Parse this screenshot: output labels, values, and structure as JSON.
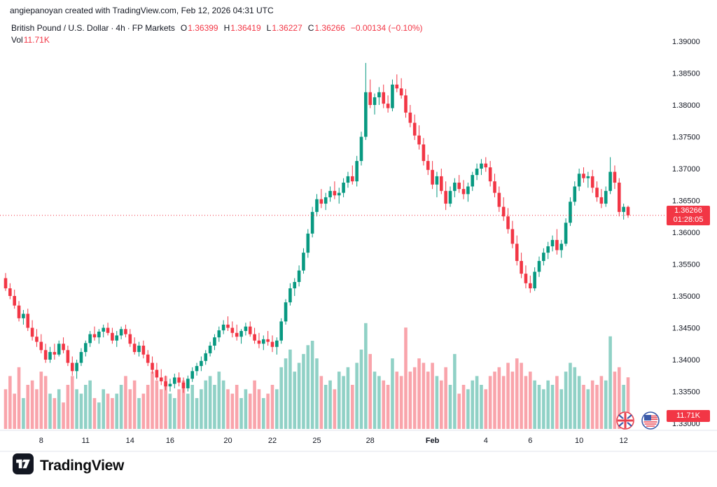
{
  "top_bar": {
    "text": "angiepanoyan created with TradingView.com, Feb 12, 2026 04:31 UTC"
  },
  "legend": {
    "symbol": "British Pound / U.S. Dollar",
    "dot": "·",
    "interval": "4h",
    "exchange": "FP Markets",
    "ohlc": {
      "o_label": "O",
      "o": "1.36399",
      "h_label": "H",
      "h": "1.36419",
      "l_label": "L",
      "l": "1.36227",
      "c_label": "C",
      "c": "1.36266",
      "change": "−0.00134 (−0.10%)"
    },
    "vol_label": "Vol",
    "vol_value": "11.71K"
  },
  "price_label": {
    "price": "1.36266",
    "countdown": "01:28:05"
  },
  "volume_label": "11.71K",
  "footer": {
    "brand": "TradingView"
  },
  "icons": {
    "pair": [
      "gbp-flag-icon",
      "usd-flag-icon"
    ],
    "brand": "tradingview-logo-icon"
  },
  "colors": {
    "up": "#089981",
    "down": "#f23645",
    "vol_up": "rgba(8,153,129,0.45)",
    "vol_down": "rgba(242,54,69,0.45)",
    "axis_text": "#131722",
    "label_bg": "#f23645",
    "separator": "#e0e3eb"
  },
  "chart_data": {
    "type": "candlestick",
    "title": "British Pound / U.S. Dollar",
    "interval": "4h",
    "exchange": "FP Markets",
    "price_line": 1.36266,
    "y_axis": {
      "min": 1.33,
      "max": 1.39,
      "ticks": [
        "1.39000",
        "1.38500",
        "1.38000",
        "1.37500",
        "1.37000",
        "1.36500",
        "1.36000",
        "1.35500",
        "1.35000",
        "1.34500",
        "1.34000",
        "1.33500",
        "1.33000"
      ]
    },
    "x_axis": {
      "labels": [
        {
          "text": "8",
          "index": 8
        },
        {
          "text": "11",
          "index": 18
        },
        {
          "text": "14",
          "index": 28
        },
        {
          "text": "16",
          "index": 37
        },
        {
          "text": "20",
          "index": 50
        },
        {
          "text": "22",
          "index": 60
        },
        {
          "text": "25",
          "index": 70
        },
        {
          "text": "28",
          "index": 82
        },
        {
          "text": "Feb",
          "index": 96,
          "bold": true
        },
        {
          "text": "4",
          "index": 108
        },
        {
          "text": "6",
          "index": 118
        },
        {
          "text": "10",
          "index": 129
        },
        {
          "text": "12",
          "index": 139
        }
      ]
    },
    "candles_format": [
      "open",
      "high",
      "low",
      "close",
      "volume_k"
    ],
    "candles": [
      [
        1.3528,
        1.3536,
        1.3508,
        1.3512,
        9
      ],
      [
        1.3512,
        1.352,
        1.3495,
        1.35,
        12
      ],
      [
        1.35,
        1.351,
        1.348,
        1.3485,
        8
      ],
      [
        1.3485,
        1.3492,
        1.346,
        1.3465,
        14
      ],
      [
        1.3465,
        1.3478,
        1.3455,
        1.3472,
        7
      ],
      [
        1.3472,
        1.348,
        1.3445,
        1.345,
        10
      ],
      [
        1.345,
        1.3462,
        1.343,
        1.3436,
        11
      ],
      [
        1.3436,
        1.3448,
        1.342,
        1.3428,
        9
      ],
      [
        1.3428,
        1.344,
        1.341,
        1.3415,
        13
      ],
      [
        1.3415,
        1.3425,
        1.3395,
        1.34,
        12
      ],
      [
        1.34,
        1.342,
        1.3395,
        1.3412,
        8
      ],
      [
        1.3412,
        1.3425,
        1.34,
        1.3408,
        7
      ],
      [
        1.3408,
        1.343,
        1.3405,
        1.3425,
        9
      ],
      [
        1.3425,
        1.3435,
        1.341,
        1.3415,
        6
      ],
      [
        1.3415,
        1.3422,
        1.339,
        1.3395,
        10
      ],
      [
        1.3395,
        1.3405,
        1.3375,
        1.3382,
        12
      ],
      [
        1.3382,
        1.34,
        1.337,
        1.3395,
        9
      ],
      [
        1.3395,
        1.3418,
        1.339,
        1.3412,
        8
      ],
      [
        1.3412,
        1.343,
        1.3405,
        1.3426,
        10
      ],
      [
        1.3426,
        1.3445,
        1.342,
        1.344,
        11
      ],
      [
        1.344,
        1.3452,
        1.343,
        1.3435,
        7
      ],
      [
        1.3435,
        1.3448,
        1.3425,
        1.3444,
        6
      ],
      [
        1.3444,
        1.3455,
        1.3435,
        1.345,
        9
      ],
      [
        1.345,
        1.3458,
        1.3438,
        1.3442,
        8
      ],
      [
        1.3442,
        1.345,
        1.3425,
        1.343,
        7
      ],
      [
        1.343,
        1.3445,
        1.342,
        1.3438,
        8
      ],
      [
        1.3438,
        1.3452,
        1.3432,
        1.3448,
        10
      ],
      [
        1.3448,
        1.3455,
        1.3435,
        1.344,
        12
      ],
      [
        1.344,
        1.3448,
        1.342,
        1.3425,
        9
      ],
      [
        1.3425,
        1.3435,
        1.3408,
        1.3412,
        11
      ],
      [
        1.3412,
        1.3428,
        1.3405,
        1.3422,
        7
      ],
      [
        1.3422,
        1.343,
        1.3402,
        1.3408,
        8
      ],
      [
        1.3408,
        1.3415,
        1.339,
        1.3395,
        10
      ],
      [
        1.3395,
        1.3405,
        1.3378,
        1.3384,
        13
      ],
      [
        1.3384,
        1.3395,
        1.3368,
        1.3372,
        11
      ],
      [
        1.3372,
        1.3385,
        1.336,
        1.3366,
        9
      ],
      [
        1.3366,
        1.3375,
        1.3352,
        1.3358,
        12
      ],
      [
        1.3358,
        1.337,
        1.335,
        1.3362,
        8
      ],
      [
        1.3362,
        1.3378,
        1.3355,
        1.3372,
        7
      ],
      [
        1.3372,
        1.338,
        1.3358,
        1.3364,
        9
      ],
      [
        1.3364,
        1.3372,
        1.3348,
        1.3355,
        11
      ],
      [
        1.3355,
        1.3375,
        1.335,
        1.337,
        8
      ],
      [
        1.337,
        1.3388,
        1.3365,
        1.3382,
        10
      ],
      [
        1.3382,
        1.3395,
        1.3375,
        1.339,
        7
      ],
      [
        1.339,
        1.3405,
        1.3382,
        1.3398,
        9
      ],
      [
        1.3398,
        1.3415,
        1.3392,
        1.341,
        11
      ],
      [
        1.341,
        1.3428,
        1.3405,
        1.3422,
        12
      ],
      [
        1.3422,
        1.344,
        1.3415,
        1.3435,
        10
      ],
      [
        1.3435,
        1.3452,
        1.3428,
        1.3446,
        13
      ],
      [
        1.3446,
        1.3462,
        1.344,
        1.3455,
        11
      ],
      [
        1.3455,
        1.3468,
        1.3445,
        1.345,
        9
      ],
      [
        1.345,
        1.346,
        1.3435,
        1.3442,
        8
      ],
      [
        1.3442,
        1.3455,
        1.343,
        1.3436,
        10
      ],
      [
        1.3436,
        1.3448,
        1.3425,
        1.3445,
        7
      ],
      [
        1.3445,
        1.3458,
        1.3438,
        1.3452,
        9
      ],
      [
        1.3452,
        1.346,
        1.3436,
        1.344,
        8
      ],
      [
        1.344,
        1.345,
        1.3425,
        1.343,
        11
      ],
      [
        1.343,
        1.3442,
        1.3418,
        1.3425,
        9
      ],
      [
        1.3425,
        1.3438,
        1.3415,
        1.3432,
        7
      ],
      [
        1.3432,
        1.3445,
        1.3422,
        1.3428,
        8
      ],
      [
        1.3428,
        1.3438,
        1.3412,
        1.342,
        10
      ],
      [
        1.342,
        1.3435,
        1.3408,
        1.343,
        9
      ],
      [
        1.343,
        1.3465,
        1.3425,
        1.346,
        14
      ],
      [
        1.346,
        1.3495,
        1.3455,
        1.349,
        16
      ],
      [
        1.349,
        1.352,
        1.3485,
        1.3512,
        18
      ],
      [
        1.3512,
        1.3528,
        1.35,
        1.3522,
        13
      ],
      [
        1.3522,
        1.3548,
        1.3515,
        1.354,
        15
      ],
      [
        1.354,
        1.3575,
        1.3535,
        1.3568,
        17
      ],
      [
        1.3568,
        1.3605,
        1.356,
        1.3598,
        19
      ],
      [
        1.3598,
        1.364,
        1.3592,
        1.3632,
        20
      ],
      [
        1.3632,
        1.366,
        1.3625,
        1.3652,
        16
      ],
      [
        1.3652,
        1.3668,
        1.3638,
        1.3645,
        12
      ],
      [
        1.3645,
        1.3662,
        1.3635,
        1.3655,
        10
      ],
      [
        1.3655,
        1.3672,
        1.3648,
        1.3665,
        11
      ],
      [
        1.3665,
        1.368,
        1.3652,
        1.3658,
        9
      ],
      [
        1.3658,
        1.367,
        1.3645,
        1.3662,
        13
      ],
      [
        1.3662,
        1.3685,
        1.3655,
        1.3678,
        12
      ],
      [
        1.3678,
        1.3695,
        1.367,
        1.3688,
        14
      ],
      [
        1.3688,
        1.3705,
        1.3675,
        1.368,
        10
      ],
      [
        1.368,
        1.372,
        1.3672,
        1.3712,
        15
      ],
      [
        1.3712,
        1.3758,
        1.3705,
        1.375,
        18
      ],
      [
        1.375,
        1.3866,
        1.3745,
        1.382,
        24
      ],
      [
        1.382,
        1.384,
        1.3795,
        1.38,
        17
      ],
      [
        1.38,
        1.3818,
        1.3785,
        1.3812,
        13
      ],
      [
        1.3812,
        1.3828,
        1.38,
        1.382,
        12
      ],
      [
        1.382,
        1.3832,
        1.3795,
        1.3802,
        11
      ],
      [
        1.3802,
        1.3815,
        1.3788,
        1.3795,
        10
      ],
      [
        1.3795,
        1.384,
        1.379,
        1.3832,
        16
      ],
      [
        1.3832,
        1.3848,
        1.382,
        1.3826,
        13
      ],
      [
        1.3826,
        1.3842,
        1.381,
        1.3815,
        12
      ],
      [
        1.3815,
        1.3825,
        1.378,
        1.3788,
        23
      ],
      [
        1.3788,
        1.38,
        1.3765,
        1.3772,
        13
      ],
      [
        1.3772,
        1.3785,
        1.3745,
        1.3752,
        14
      ],
      [
        1.3752,
        1.3768,
        1.373,
        1.3738,
        16
      ],
      [
        1.3738,
        1.3748,
        1.3705,
        1.3712,
        15
      ],
      [
        1.3712,
        1.3722,
        1.369,
        1.3698,
        13
      ],
      [
        1.3698,
        1.3712,
        1.3668,
        1.3675,
        15
      ],
      [
        1.3675,
        1.3695,
        1.3655,
        1.3688,
        12
      ],
      [
        1.3688,
        1.37,
        1.366,
        1.3665,
        11
      ],
      [
        1.3665,
        1.368,
        1.3635,
        1.3645,
        14
      ],
      [
        1.3645,
        1.3672,
        1.364,
        1.3665,
        10
      ],
      [
        1.3665,
        1.3685,
        1.3655,
        1.3678,
        17
      ],
      [
        1.3678,
        1.369,
        1.3662,
        1.3668,
        8
      ],
      [
        1.3668,
        1.3682,
        1.3652,
        1.366,
        10
      ],
      [
        1.366,
        1.3678,
        1.3648,
        1.3672,
        9
      ],
      [
        1.3672,
        1.3695,
        1.3665,
        1.369,
        11
      ],
      [
        1.369,
        1.3708,
        1.3682,
        1.37,
        12
      ],
      [
        1.37,
        1.3715,
        1.369,
        1.3708,
        10
      ],
      [
        1.3708,
        1.3718,
        1.3695,
        1.3702,
        9
      ],
      [
        1.3702,
        1.3712,
        1.3672,
        1.368,
        12
      ],
      [
        1.368,
        1.3692,
        1.3655,
        1.3662,
        13
      ],
      [
        1.3662,
        1.3672,
        1.3632,
        1.364,
        14
      ],
      [
        1.364,
        1.3655,
        1.3618,
        1.3625,
        12
      ],
      [
        1.3625,
        1.3638,
        1.3598,
        1.3605,
        15
      ],
      [
        1.3605,
        1.3618,
        1.3575,
        1.3582,
        13
      ],
      [
        1.3582,
        1.3595,
        1.3548,
        1.3555,
        16
      ],
      [
        1.3555,
        1.3568,
        1.3528,
        1.3535,
        15
      ],
      [
        1.3535,
        1.3548,
        1.3512,
        1.352,
        12
      ],
      [
        1.352,
        1.3532,
        1.3505,
        1.3512,
        13
      ],
      [
        1.3512,
        1.3545,
        1.3508,
        1.3538,
        11
      ],
      [
        1.3538,
        1.3562,
        1.353,
        1.3555,
        10
      ],
      [
        1.3555,
        1.3575,
        1.3548,
        1.3568,
        9
      ],
      [
        1.3568,
        1.3585,
        1.3558,
        1.3578,
        11
      ],
      [
        1.3578,
        1.3595,
        1.357,
        1.3588,
        10
      ],
      [
        1.3588,
        1.3605,
        1.3565,
        1.3572,
        12
      ],
      [
        1.3572,
        1.3588,
        1.356,
        1.3582,
        9
      ],
      [
        1.3582,
        1.3622,
        1.3578,
        1.3615,
        13
      ],
      [
        1.3615,
        1.3655,
        1.361,
        1.3648,
        15
      ],
      [
        1.3648,
        1.368,
        1.3642,
        1.3672,
        14
      ],
      [
        1.3672,
        1.37,
        1.3665,
        1.3692,
        12
      ],
      [
        1.3692,
        1.3702,
        1.3678,
        1.3685,
        10
      ],
      [
        1.3685,
        1.3695,
        1.367,
        1.3688,
        9
      ],
      [
        1.3688,
        1.3698,
        1.3662,
        1.367,
        11
      ],
      [
        1.367,
        1.368,
        1.3648,
        1.3655,
        10
      ],
      [
        1.3655,
        1.3668,
        1.3638,
        1.3645,
        12
      ],
      [
        1.3645,
        1.3672,
        1.364,
        1.3665,
        11
      ],
      [
        1.3665,
        1.3718,
        1.366,
        1.3695,
        21
      ],
      [
        1.3695,
        1.3705,
        1.3668,
        1.3678,
        13
      ],
      [
        1.3678,
        1.3685,
        1.3625,
        1.3632,
        14
      ],
      [
        1.3632,
        1.3645,
        1.362,
        1.364,
        10
      ],
      [
        1.36399,
        1.36419,
        1.36227,
        1.36266,
        11.71
      ]
    ]
  }
}
